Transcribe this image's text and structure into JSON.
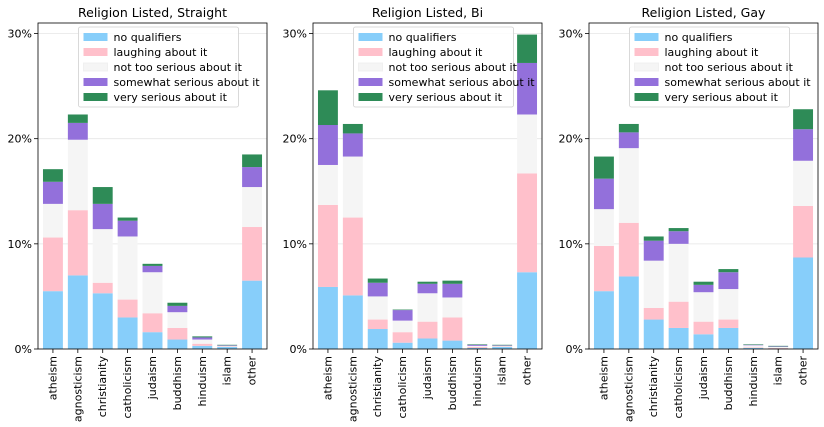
{
  "legend_location": "upper-center",
  "category_count_note": null,
  "chart_data": [
    {
      "type": "bar",
      "stacked": true,
      "title": "Religion Listed, Straight",
      "categories": [
        "atheism",
        "agnosticism",
        "christianity",
        "catholicism",
        "judaism",
        "buddhism",
        "hinduism",
        "islam",
        "other"
      ],
      "ylim": [
        0,
        31
      ],
      "yticks": [
        0,
        10,
        20,
        30
      ],
      "ytick_labels": [
        "0%",
        "10%",
        "20%",
        "30%"
      ],
      "grid": true,
      "legend": "upper center",
      "series": [
        {
          "name": "no qualifiers",
          "color": "#87cefa",
          "values": [
            5.5,
            7.0,
            5.3,
            3.0,
            1.6,
            0.9,
            0.3,
            0.2,
            6.5
          ]
        },
        {
          "name": "laughing about it",
          "color": "#ffc0cb",
          "values": [
            5.1,
            6.2,
            1.0,
            1.7,
            1.8,
            1.1,
            0.2,
            0.05,
            5.1
          ]
        },
        {
          "name": "not too serious about it",
          "color": "#f5f5f5",
          "values": [
            3.2,
            6.7,
            5.1,
            6.0,
            3.9,
            1.5,
            0.4,
            0.05,
            3.8
          ]
        },
        {
          "name": "somewhat serious about it",
          "color": "#9370db",
          "values": [
            2.1,
            1.6,
            2.4,
            1.5,
            0.6,
            0.6,
            0.2,
            0.05,
            1.9
          ]
        },
        {
          "name": "very serious about it",
          "color": "#2e8b57",
          "values": [
            1.2,
            0.8,
            1.6,
            0.3,
            0.2,
            0.3,
            0.1,
            0.05,
            1.2
          ]
        }
      ]
    },
    {
      "type": "bar",
      "stacked": true,
      "title": "Religion Listed, Bi",
      "categories": [
        "atheism",
        "agnosticism",
        "christianity",
        "catholicism",
        "judaism",
        "buddhism",
        "hinduism",
        "islam",
        "other"
      ],
      "ylim": [
        0,
        31
      ],
      "yticks": [
        0,
        10,
        20,
        30
      ],
      "ytick_labels": [
        "0%",
        "10%",
        "20%",
        "30%"
      ],
      "grid": true,
      "legend": "upper center",
      "series": [
        {
          "name": "no qualifiers",
          "color": "#87cefa",
          "values": [
            5.9,
            5.1,
            1.9,
            0.6,
            1.0,
            0.8,
            0.1,
            0.2,
            7.3
          ]
        },
        {
          "name": "laughing about it",
          "color": "#ffc0cb",
          "values": [
            7.8,
            7.4,
            0.9,
            1.0,
            1.6,
            2.2,
            0.1,
            0.05,
            9.4
          ]
        },
        {
          "name": "not too serious about it",
          "color": "#f5f5f5",
          "values": [
            3.8,
            5.8,
            2.2,
            1.1,
            2.7,
            1.9,
            0.1,
            0.05,
            5.6
          ]
        },
        {
          "name": "somewhat serious about it",
          "color": "#9370db",
          "values": [
            3.8,
            2.2,
            1.3,
            1.0,
            0.9,
            1.3,
            0.1,
            0.05,
            4.9
          ]
        },
        {
          "name": "very serious about it",
          "color": "#2e8b57",
          "values": [
            3.3,
            0.9,
            0.4,
            0.05,
            0.2,
            0.3,
            0.05,
            0.05,
            2.7
          ]
        }
      ]
    },
    {
      "type": "bar",
      "stacked": true,
      "title": "Religion Listed, Gay",
      "categories": [
        "atheism",
        "agnosticism",
        "christianity",
        "catholicism",
        "judaism",
        "buddhism",
        "hinduism",
        "islam",
        "other"
      ],
      "ylim": [
        0,
        31
      ],
      "yticks": [
        0,
        10,
        20,
        30
      ],
      "ytick_labels": [
        "0%",
        "10%",
        "20%",
        "30%"
      ],
      "grid": true,
      "legend": "upper center",
      "series": [
        {
          "name": "no qualifiers",
          "color": "#87cefa",
          "values": [
            5.5,
            6.9,
            2.8,
            2.0,
            1.4,
            2.0,
            0.1,
            0.05,
            8.7
          ]
        },
        {
          "name": "laughing about it",
          "color": "#ffc0cb",
          "values": [
            4.3,
            5.1,
            1.1,
            2.5,
            1.2,
            0.8,
            0.05,
            0.05,
            4.9
          ]
        },
        {
          "name": "not too serious about it",
          "color": "#f5f5f5",
          "values": [
            3.5,
            7.1,
            4.5,
            5.5,
            2.8,
            2.9,
            0.2,
            0.1,
            4.3
          ]
        },
        {
          "name": "somewhat serious about it",
          "color": "#9370db",
          "values": [
            2.9,
            1.5,
            1.9,
            1.2,
            0.7,
            1.6,
            0.05,
            0.05,
            3.0
          ]
        },
        {
          "name": "very serious about it",
          "color": "#2e8b57",
          "values": [
            2.1,
            0.8,
            0.4,
            0.3,
            0.3,
            0.3,
            0.05,
            0.05,
            1.9
          ]
        }
      ]
    }
  ]
}
